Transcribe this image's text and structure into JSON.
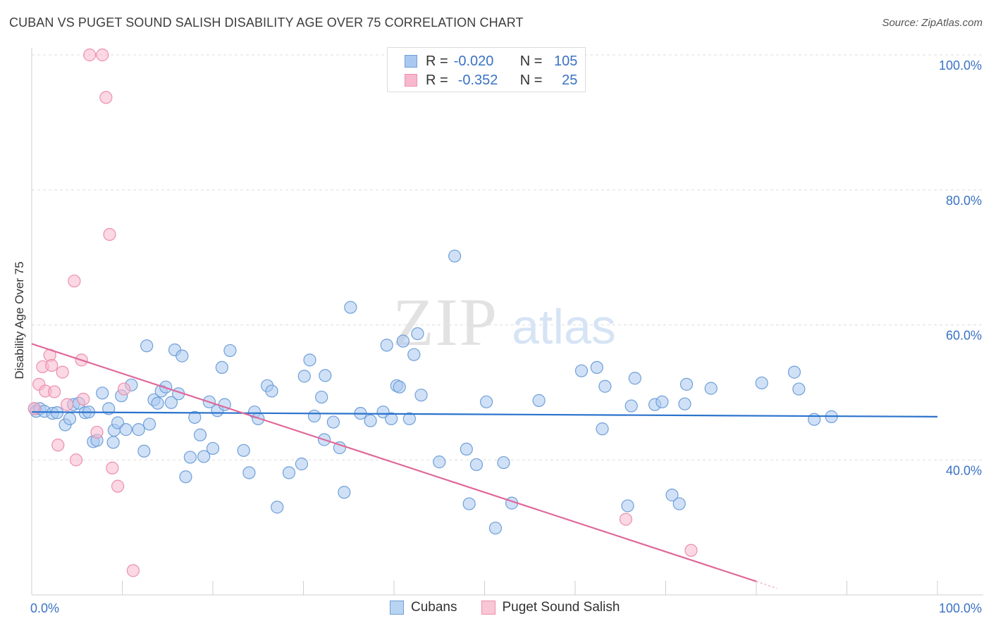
{
  "title": "CUBAN VS PUGET SOUND SALISH DISABILITY AGE OVER 75 CORRELATION CHART",
  "source": "Source: ZipAtlas.com",
  "watermark": {
    "zip": "ZIP",
    "atlas": "atlas"
  },
  "legend_stats": [
    {
      "r_label": "R =",
      "r_value": "-0.020",
      "n_label": "N =",
      "n_value": "105"
    },
    {
      "r_label": "R =",
      "r_value": "-0.352",
      "n_label": "N =",
      "n_value": "25"
    }
  ],
  "colors": {
    "cubans_fill": "#a9c9f0",
    "cubans_stroke": "#6f9fd8",
    "cubans_line": "#2a73cc",
    "salish_fill": "#f7b8cc",
    "salish_stroke": "#ec8fae",
    "salish_line": "#e0699a",
    "tick_label": "#3a72c4",
    "grid": "#dddddd"
  },
  "chart_data": {
    "type": "scatter",
    "ylabel": "Disability Age Over 75",
    "xlim": [
      0,
      100
    ],
    "ylim": [
      20,
      100
    ],
    "x_tick_labels": [
      "0.0%",
      "100.0%"
    ],
    "y_ticks": [
      40,
      60,
      80,
      100
    ],
    "y_tick_labels": [
      "40.0%",
      "60.0%",
      "80.0%",
      "100.0%"
    ],
    "grid": "horizontal dashed",
    "legend_position": "top-center and bottom",
    "series": [
      {
        "name": "Cubans",
        "trend": {
          "x": [
            0,
            100
          ],
          "y": [
            47.1,
            46.4
          ]
        },
        "points": [
          [
            0.3,
            47.6
          ],
          [
            0.5,
            47.2
          ],
          [
            0.9,
            47.6
          ],
          [
            1.4,
            47.2
          ],
          [
            2.3,
            46.9
          ],
          [
            2.8,
            47.0
          ],
          [
            3.7,
            45.2
          ],
          [
            4.2,
            46.1
          ],
          [
            4.6,
            48.2
          ],
          [
            5.2,
            48.4
          ],
          [
            5.9,
            47.0
          ],
          [
            6.3,
            47.1
          ],
          [
            6.8,
            42.7
          ],
          [
            7.2,
            42.9
          ],
          [
            7.8,
            49.9
          ],
          [
            8.5,
            47.6
          ],
          [
            9.1,
            44.4
          ],
          [
            9.5,
            45.5
          ],
          [
            9.9,
            49.5
          ],
          [
            10.4,
            44.5
          ],
          [
            11.0,
            51.1
          ],
          [
            11.8,
            44.5
          ],
          [
            12.4,
            41.3
          ],
          [
            12.7,
            56.9
          ],
          [
            13.0,
            45.3
          ],
          [
            13.5,
            48.9
          ],
          [
            13.9,
            48.4
          ],
          [
            14.3,
            50.2
          ],
          [
            14.8,
            50.8
          ],
          [
            15.4,
            48.5
          ],
          [
            15.8,
            56.3
          ],
          [
            16.2,
            49.8
          ],
          [
            16.6,
            55.4
          ],
          [
            17.0,
            37.5
          ],
          [
            17.5,
            40.4
          ],
          [
            18.0,
            46.3
          ],
          [
            18.6,
            43.7
          ],
          [
            19.0,
            40.5
          ],
          [
            19.6,
            48.6
          ],
          [
            20.0,
            41.7
          ],
          [
            20.5,
            47.3
          ],
          [
            21.0,
            53.7
          ],
          [
            21.3,
            48.2
          ],
          [
            21.9,
            56.2
          ],
          [
            23.4,
            41.4
          ],
          [
            24.0,
            38.1
          ],
          [
            24.6,
            47.1
          ],
          [
            25.0,
            46.1
          ],
          [
            26.0,
            51.0
          ],
          [
            26.5,
            50.2
          ],
          [
            27.1,
            33.0
          ],
          [
            28.4,
            38.1
          ],
          [
            29.8,
            39.4
          ],
          [
            30.1,
            52.4
          ],
          [
            30.7,
            54.8
          ],
          [
            31.2,
            46.5
          ],
          [
            32.0,
            49.3
          ],
          [
            32.4,
            52.5
          ],
          [
            33.3,
            45.6
          ],
          [
            34.0,
            41.8
          ],
          [
            34.5,
            35.2
          ],
          [
            35.2,
            62.6
          ],
          [
            36.3,
            46.9
          ],
          [
            37.4,
            45.8
          ],
          [
            38.8,
            47.1
          ],
          [
            39.2,
            57.0
          ],
          [
            39.7,
            46.1
          ],
          [
            40.3,
            51.0
          ],
          [
            40.6,
            50.8
          ],
          [
            41.0,
            57.6
          ],
          [
            41.7,
            46.1
          ],
          [
            42.2,
            55.6
          ],
          [
            42.6,
            58.7
          ],
          [
            43.0,
            49.6
          ],
          [
            45.0,
            39.7
          ],
          [
            46.7,
            70.2
          ],
          [
            48.0,
            41.6
          ],
          [
            48.3,
            33.5
          ],
          [
            49.1,
            39.3
          ],
          [
            50.2,
            48.6
          ],
          [
            51.2,
            29.9
          ],
          [
            52.1,
            39.6
          ],
          [
            53.0,
            33.6
          ],
          [
            56.0,
            48.8
          ],
          [
            60.7,
            53.2
          ],
          [
            62.4,
            53.7
          ],
          [
            63.0,
            44.6
          ],
          [
            63.3,
            50.9
          ],
          [
            65.8,
            33.2
          ],
          [
            66.2,
            48.0
          ],
          [
            66.6,
            52.1
          ],
          [
            68.8,
            48.2
          ],
          [
            69.6,
            48.6
          ],
          [
            70.7,
            34.8
          ],
          [
            71.5,
            33.5
          ],
          [
            72.1,
            48.3
          ],
          [
            72.3,
            51.2
          ],
          [
            75.0,
            50.6
          ],
          [
            80.6,
            51.4
          ],
          [
            84.2,
            53.0
          ],
          [
            84.7,
            50.5
          ],
          [
            86.4,
            46.0
          ],
          [
            88.3,
            46.4
          ],
          [
            32.3,
            43.0
          ],
          [
            9.0,
            42.6
          ]
        ]
      },
      {
        "name": "Puget Sound Salish",
        "trend": {
          "x": [
            2,
            80
          ],
          "y": [
            57.2,
            22.0
          ]
        },
        "points": [
          [
            0.3,
            47.6
          ],
          [
            0.8,
            51.2
          ],
          [
            1.2,
            53.8
          ],
          [
            1.5,
            50.2
          ],
          [
            2.0,
            55.5
          ],
          [
            2.2,
            54.0
          ],
          [
            2.5,
            50.1
          ],
          [
            2.9,
            42.2
          ],
          [
            3.4,
            53.0
          ],
          [
            3.9,
            48.2
          ],
          [
            4.7,
            66.5
          ],
          [
            4.9,
            40.0
          ],
          [
            5.5,
            54.8
          ],
          [
            5.7,
            49.0
          ],
          [
            6.4,
            100.0
          ],
          [
            7.2,
            44.1
          ],
          [
            7.8,
            100.0
          ],
          [
            8.2,
            93.7
          ],
          [
            8.6,
            73.4
          ],
          [
            8.9,
            38.8
          ],
          [
            9.5,
            36.1
          ],
          [
            10.2,
            50.5
          ],
          [
            11.2,
            23.6
          ],
          [
            65.6,
            31.2
          ],
          [
            72.8,
            26.6
          ]
        ]
      }
    ]
  }
}
